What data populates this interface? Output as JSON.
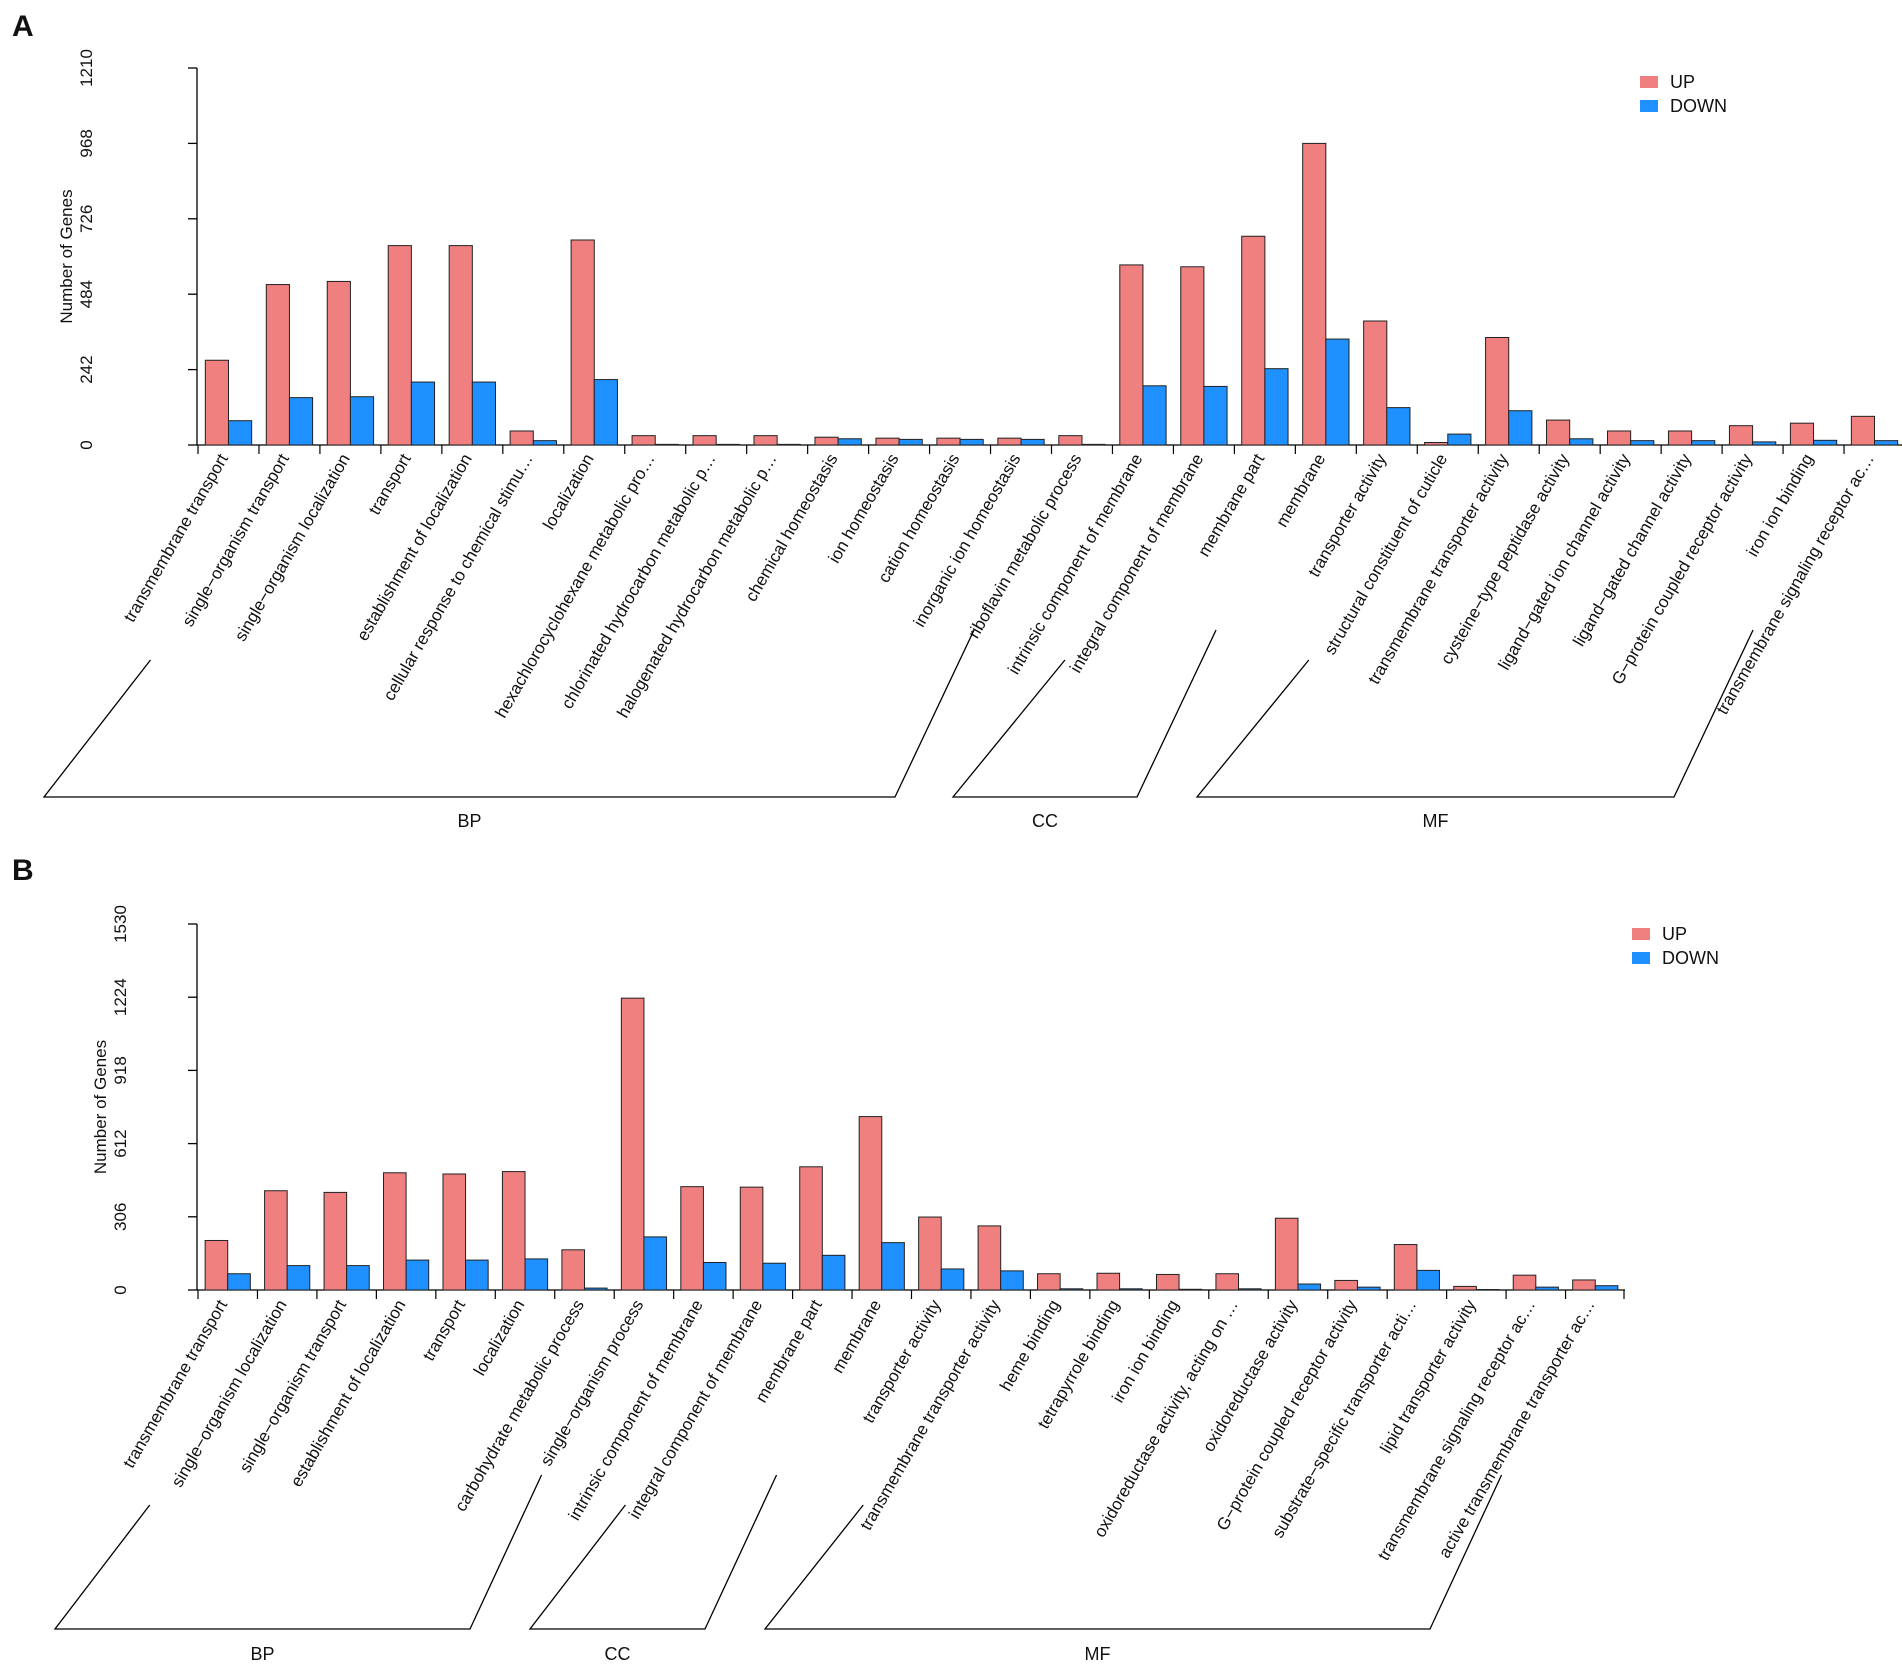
{
  "colors": {
    "up": "#F08080",
    "down": "#1E90FF",
    "axis": "#000000"
  },
  "chart_data": [
    {
      "type": "bar",
      "panel": "A",
      "ylabel": "Number of Genes",
      "ylim": [
        0,
        1210
      ],
      "yticks": [
        "0",
        "242",
        "484",
        "726",
        "968",
        "1210"
      ],
      "legend": [
        "UP",
        "DOWN"
      ],
      "legend_position": "top-right",
      "categories": [
        "transmembrane transport",
        "single−organism transport",
        "single−organism localization",
        "transport",
        "establishment of localization",
        "cellular response to chemical stimu…",
        "localization",
        "hexachlorocyclohexane metabolic pro…",
        "chlorinated hydrocarbon metabolic p…",
        "halogenated hydrocarbon metabolic p…",
        "chemical homeostasis",
        "ion homeostasis",
        "cation homeostasis",
        "inorganic ion homeostasis",
        "riboflavin metabolic process",
        "intrinsic component of membrane",
        "integral component of membrane",
        "membrane part",
        "membrane",
        "transporter activity",
        "structural constituent of cuticle",
        "transmembrane transporter activity",
        "cysteine−type peptidase activity",
        "ligand−gated ion channel activity",
        "ligand−gated channel activity",
        "G−protein coupled receptor activity",
        "iron ion binding",
        "transmembrane signaling receptor ac…"
      ],
      "series": [
        {
          "name": "UP",
          "values": [
            272,
            515,
            525,
            640,
            640,
            45,
            658,
            30,
            30,
            30,
            25,
            22,
            22,
            22,
            30,
            578,
            572,
            670,
            968,
            398,
            8,
            345,
            80,
            45,
            45,
            62,
            70,
            92
          ]
        },
        {
          "name": "DOWN",
          "values": [
            78,
            152,
            155,
            202,
            202,
            14,
            210,
            2,
            2,
            2,
            20,
            18,
            18,
            18,
            2,
            190,
            188,
            245,
            340,
            120,
            35,
            110,
            20,
            14,
            14,
            10,
            15,
            14
          ]
        }
      ],
      "groups": [
        {
          "label": "BP",
          "start": 0,
          "end": 14
        },
        {
          "label": "CC",
          "start": 15,
          "end": 18
        },
        {
          "label": "MF",
          "start": 19,
          "end": 27
        }
      ]
    },
    {
      "type": "bar",
      "panel": "B",
      "ylabel": "Number of Genes",
      "ylim": [
        0,
        1530
      ],
      "yticks": [
        "0",
        "306",
        "612",
        "918",
        "1224",
        "1530"
      ],
      "legend": [
        "UP",
        "DOWN"
      ],
      "legend_position": "top-right",
      "categories": [
        "transmembrane transport",
        "single−organism localization",
        "single−organism transport",
        "establishment of localization",
        "transport",
        "localization",
        "carbohydrate metabolic process",
        "single−organism process",
        "intrinsic component of membrane",
        "integral component of membrane",
        "membrane part",
        "membrane",
        "transporter activity",
        "transmembrane transporter activity",
        "heme binding",
        "tetrapyrrole binding",
        "iron ion binding",
        "oxidoreductase activity, acting on …",
        "oxidoreductase activity",
        "G−protein coupled receptor activity",
        "substrate−specific transporter acti…",
        "lipid transporter activity",
        "transmembrane signaling receptor ac…",
        "active transmembrane transporter ac…"
      ],
      "series": [
        {
          "name": "UP",
          "values": [
            207,
            415,
            408,
            490,
            485,
            495,
            168,
            1220,
            432,
            430,
            515,
            725,
            305,
            268,
            68,
            70,
            65,
            68,
            300,
            40,
            190,
            15,
            62,
            42
          ]
        },
        {
          "name": "DOWN",
          "values": [
            68,
            102,
            102,
            125,
            125,
            130,
            8,
            222,
            115,
            112,
            145,
            198,
            88,
            80,
            5,
            5,
            3,
            5,
            25,
            12,
            82,
            2,
            12,
            18
          ]
        }
      ],
      "groups": [
        {
          "label": "BP",
          "start": 0,
          "end": 7
        },
        {
          "label": "CC",
          "start": 8,
          "end": 11
        },
        {
          "label": "MF",
          "start": 12,
          "end": 23
        }
      ]
    }
  ]
}
